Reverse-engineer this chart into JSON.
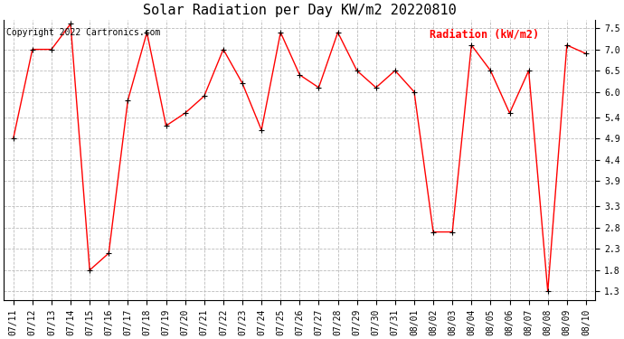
{
  "title": "Solar Radiation per Day KW/m2 20220810",
  "copyright_text": "Copyright 2022 Cartronics.com",
  "legend_label": "Radiation (kW/m2)",
  "dates": [
    "07/11",
    "07/12",
    "07/13",
    "07/14",
    "07/15",
    "07/16",
    "07/17",
    "07/18",
    "07/19",
    "07/20",
    "07/21",
    "07/22",
    "07/23",
    "07/24",
    "07/25",
    "07/26",
    "07/27",
    "07/28",
    "07/29",
    "07/30",
    "07/31",
    "08/01",
    "08/02",
    "08/03",
    "08/04",
    "08/05",
    "08/06",
    "08/07",
    "08/08",
    "08/09",
    "08/10"
  ],
  "values": [
    4.9,
    7.0,
    7.0,
    7.6,
    1.8,
    2.2,
    5.8,
    7.4,
    5.2,
    5.5,
    5.9,
    7.0,
    6.2,
    5.1,
    7.4,
    6.4,
    6.1,
    7.4,
    6.5,
    6.1,
    6.5,
    6.0,
    2.7,
    2.7,
    7.1,
    6.5,
    5.5,
    6.5,
    1.3,
    7.1,
    6.9
  ],
  "yticks": [
    1.3,
    1.8,
    2.3,
    2.8,
    3.3,
    3.9,
    4.4,
    4.9,
    5.4,
    6.0,
    6.5,
    7.0,
    7.5
  ],
  "ylim": [
    1.1,
    7.7
  ],
  "line_color": "red",
  "marker_color": "black",
  "background_color": "white",
  "grid_color": "#bbbbbb",
  "title_fontsize": 11,
  "copyright_fontsize": 7,
  "legend_fontsize": 8.5,
  "tick_fontsize": 7,
  "figwidth": 6.9,
  "figheight": 3.75,
  "dpi": 100
}
